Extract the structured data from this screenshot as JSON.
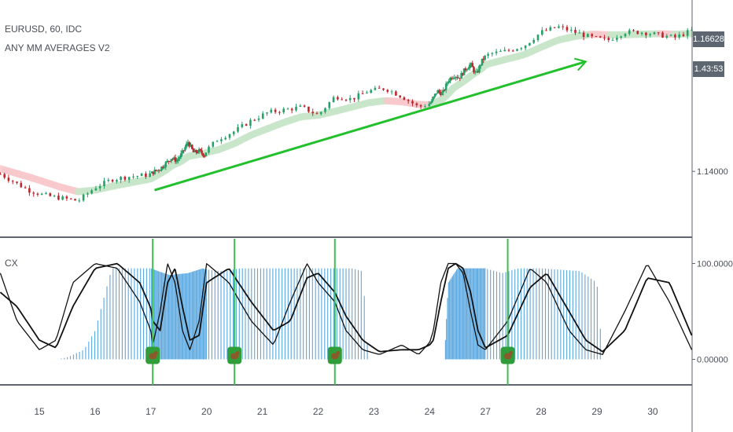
{
  "header": {
    "symbol_line": "EURUSD, 60, IDC",
    "indicator_name": "ANY MM AVERAGES V2",
    "lower_pane_label": "CX"
  },
  "price_scale": {
    "last_price_tag": "1.16628",
    "countdown_tag": "1.43:53"
  },
  "colors": {
    "bull_candle": "#26a269",
    "bear_candle": "#c0262d",
    "ma_up_band": "#c8e6c9",
    "ma_down_band": "#f8c8cc",
    "trend_arrow": "#22c02c",
    "histogram": "#5aa8e0",
    "oscillator_lines": "#111111",
    "signal_lines": "#3fbf4f",
    "signal_icon_bg": "#2f9e3a",
    "tag_bg": "#5d6671"
  },
  "chart_data": [
    {
      "type": "line",
      "title": "EURUSD, 60, IDC",
      "subtitle": "ANY MM AVERAGES V2",
      "y_axis": {
        "ticks": [
          1.14,
          1.16628
        ],
        "tick_labels": [
          "1.14000",
          "1.16628"
        ],
        "ylim": [
          1.128,
          1.172
        ],
        "position": "right"
      },
      "x_axis": {
        "ticks": [
          15,
          16,
          17,
          20,
          21,
          22,
          23,
          24,
          27,
          28,
          29,
          30
        ],
        "tick_labels": [
          "15",
          "16",
          "17",
          "20",
          "21",
          "22",
          "23",
          "24",
          "27",
          "28",
          "29",
          "30"
        ]
      },
      "series": [
        {
          "role": "price",
          "x": [
            14.3,
            14.8,
            15.1,
            15.4,
            15.7,
            16.0,
            16.3,
            16.6,
            16.9,
            17.2,
            17.5,
            17.8,
            18.1,
            18.4,
            18.7,
            19.0,
            19.3,
            19.6,
            19.9,
            20.2,
            20.5,
            20.8,
            21.1,
            21.4,
            21.7,
            22.0,
            22.3,
            22.6,
            22.9,
            23.2,
            23.5,
            23.8,
            24.1,
            24.4,
            24.7,
            25.0,
            25.3,
            25.6,
            25.9,
            26.2,
            26.5,
            26.8,
            27.1,
            27.4,
            27.7,
            28.0,
            28.3,
            28.6,
            28.9,
            29.2,
            29.5,
            29.8,
            30.1,
            30.4,
            30.7
          ],
          "y": [
            1.1395,
            1.1365,
            1.1355,
            1.135,
            1.1345,
            1.137,
            1.1385,
            1.139,
            1.1393,
            1.14,
            1.1405,
            1.1415,
            1.1425,
            1.142,
            1.1435,
            1.1455,
            1.1435,
            1.1438,
            1.143,
            1.146,
            1.1475,
            1.1495,
            1.151,
            1.1515,
            1.152,
            1.1505,
            1.154,
            1.1535,
            1.155,
            1.1555,
            1.154,
            1.152,
            1.153,
            1.155,
            1.1545,
            1.157,
            1.158,
            1.1575,
            1.159,
            1.16,
            1.158,
            1.1605,
            1.162,
            1.1625,
            1.1635,
            1.166,
            1.167,
            1.166,
            1.165,
            1.1645,
            1.166,
            1.166,
            1.1655,
            1.165,
            1.1663
          ]
        },
        {
          "role": "moving-average",
          "x": [
            14.3,
            14.8,
            15.1,
            15.4,
            15.7,
            16.0,
            16.3,
            16.6,
            16.9,
            17.2,
            17.5,
            17.8,
            18.1,
            18.4,
            18.7,
            19.0,
            19.3,
            19.6,
            19.9,
            20.2,
            20.5,
            20.8,
            21.1,
            21.4,
            21.7,
            22.0,
            22.3,
            22.6,
            22.9,
            23.2,
            23.5,
            23.8,
            24.1,
            24.4,
            24.7,
            25.0,
            25.3,
            25.6,
            25.9,
            26.2,
            26.5,
            26.8,
            27.1,
            27.4,
            27.7,
            28.0,
            28.3,
            28.6,
            28.9,
            29.2,
            29.5,
            29.8,
            30.1,
            30.4,
            30.7
          ],
          "y": [
            1.1405,
            1.139,
            1.138,
            1.137,
            1.1362,
            1.1365,
            1.1372,
            1.1378,
            1.1384,
            1.139,
            1.1396,
            1.1402,
            1.141,
            1.1415,
            1.142,
            1.1428,
            1.143,
            1.1432,
            1.1433,
            1.144,
            1.1452,
            1.1468,
            1.148,
            1.1492,
            1.1502,
            1.1505,
            1.1512,
            1.152,
            1.1528,
            1.1532,
            1.153,
            1.1525,
            1.1524,
            1.153,
            1.1535,
            1.1545,
            1.1556,
            1.1563,
            1.157,
            1.1578,
            1.1585,
            1.1592,
            1.1602,
            1.161,
            1.1618,
            1.1632,
            1.1645,
            1.1652,
            1.1656,
            1.1655,
            1.1655,
            1.1656,
            1.1657,
            1.1656,
            1.1657
          ]
        }
      ],
      "annotations": [
        {
          "type": "arrow",
          "from": [
            17.2,
            1.1365
          ],
          "to": [
            28.8,
            1.1605
          ]
        }
      ]
    },
    {
      "type": "line",
      "title": "CX",
      "y_axis": {
        "ticks": [
          0,
          100
        ],
        "tick_labels": [
          "0.00000",
          "100.00000"
        ],
        "ylim": [
          -25,
          125
        ],
        "position": "right"
      },
      "series": [
        {
          "role": "histogram",
          "x": [
            14.3,
            15.3,
            15.5,
            15.8,
            16.0,
            16.3,
            16.6,
            17.0,
            17.4,
            18.0,
            19.0,
            19.8,
            20.3,
            20.6,
            21.0,
            22.0,
            22.6,
            22.8,
            22.9,
            24.0,
            24.8,
            25.0,
            25.5,
            26.0,
            27.0,
            27.3,
            27.6,
            28.0,
            28.7,
            29.0,
            29.1,
            30.0,
            30.6
          ],
          "y": [
            0,
            0,
            2,
            10,
            30,
            95,
            95,
            95,
            92,
            88,
            90,
            95,
            92,
            95,
            95,
            95,
            95,
            92,
            0,
            0,
            0,
            80,
            95,
            95,
            95,
            90,
            95,
            95,
            92,
            80,
            0,
            0,
            0
          ]
        },
        {
          "role": "oscillator-fast",
          "x": [
            14.3,
            14.6,
            15.0,
            15.3,
            15.6,
            16.0,
            16.4,
            16.8,
            17.1,
            17.5,
            17.9,
            18.3,
            18.7,
            19.1,
            19.6,
            20.0,
            20.4,
            20.8,
            21.2,
            21.5,
            21.8,
            22.0,
            22.3,
            22.5,
            22.8,
            23.1,
            23.5,
            23.8,
            24.2,
            24.6,
            25.0,
            25.4,
            25.8,
            26.2,
            26.6,
            27.0,
            27.4,
            27.8,
            28.1,
            28.5,
            28.8,
            29.1,
            29.5,
            29.9,
            30.3,
            30.7
          ],
          "y": [
            90,
            40,
            10,
            20,
            80,
            100,
            95,
            60,
            15,
            50,
            100,
            80,
            30,
            10,
            40,
            100,
            80,
            40,
            15,
            60,
            100,
            80,
            60,
            30,
            10,
            5,
            15,
            5,
            30,
            80,
            100,
            100,
            90,
            50,
            15,
            10,
            40,
            95,
            80,
            30,
            10,
            5,
            50,
            100,
            60,
            10
          ]
        },
        {
          "role": "oscillator-slow",
          "x": [
            14.3,
            14.6,
            15.0,
            15.3,
            15.6,
            16.0,
            16.4,
            16.8,
            17.1,
            17.5,
            17.9,
            18.3,
            18.7,
            19.1,
            19.6,
            20.0,
            20.4,
            20.8,
            21.2,
            21.5,
            21.8,
            22.0,
            22.3,
            22.5,
            22.8,
            23.1,
            23.5,
            23.8,
            24.2,
            24.6,
            25.0,
            25.4,
            25.8,
            26.2,
            26.6,
            27.0,
            27.4,
            27.8,
            28.1,
            28.5,
            28.8,
            29.1,
            29.5,
            29.9,
            30.3,
            30.7
          ],
          "y": [
            70,
            55,
            20,
            12,
            55,
            95,
            100,
            80,
            40,
            30,
            80,
            95,
            55,
            20,
            25,
            80,
            95,
            60,
            30,
            40,
            85,
            90,
            70,
            45,
            20,
            8,
            10,
            10,
            20,
            60,
            95,
            100,
            95,
            70,
            30,
            12,
            25,
            75,
            90,
            50,
            20,
            8,
            30,
            85,
            80,
            25
          ]
        }
      ],
      "annotations": [
        {
          "type": "vertical-line",
          "x": 17.1,
          "marker": "bear-icon"
        },
        {
          "type": "vertical-line",
          "x": 20.5,
          "marker": "bear-icon"
        },
        {
          "type": "vertical-line",
          "x": 22.3,
          "marker": "bear-icon"
        },
        {
          "type": "vertical-line",
          "x": 27.4,
          "marker": "bear-icon"
        }
      ]
    }
  ]
}
